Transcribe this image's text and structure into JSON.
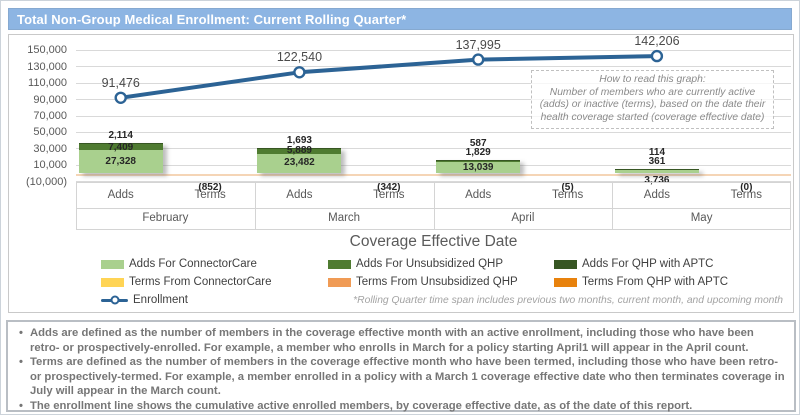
{
  "title": "Total Non-Group Medical Enrollment: Current Rolling Quarter*",
  "chart_data": {
    "type": "combo-stacked-bar-and-line",
    "title": "Total Non-Group Medical Enrollment: Current Rolling Quarter*",
    "xlabel": "Coverage Effective Date",
    "months": [
      "February",
      "March",
      "April",
      "May"
    ],
    "sub_categories": [
      "Adds",
      "Terms"
    ],
    "y_axis": {
      "tick_labels": [
        "150,000",
        "130,000",
        "110,000",
        "90,000",
        "70,000",
        "50,000",
        "30,000",
        "10,000",
        "(10,000)"
      ],
      "tick_values": [
        150000,
        130000,
        110000,
        90000,
        70000,
        50000,
        30000,
        10000,
        -10000
      ],
      "min": -10000,
      "max": 150000,
      "gridlines": true
    },
    "adds_stack": [
      {
        "name": "Adds For ConnectorCare",
        "color": "#a9d08e",
        "values": [
          27328,
          23482,
          13039,
          3736
        ],
        "labels": [
          "27,328",
          "23,482",
          "13,039",
          "3,736"
        ]
      },
      {
        "name": "Adds For Unsubsidized QHP",
        "color": "#4f7b31",
        "values": [
          7409,
          5889,
          1829,
          361
        ],
        "labels": [
          "7,409",
          "5,889",
          "1,829",
          "361"
        ]
      },
      {
        "name": "Adds For QHP with APTC",
        "color": "#375623",
        "values": [
          2114,
          1693,
          587,
          114
        ],
        "labels": [
          "2,114",
          "1,693",
          "587",
          "114"
        ]
      }
    ],
    "terms_totals": {
      "values": [
        -852,
        -342,
        -5,
        0
      ],
      "labels": [
        "(852)",
        "(342)",
        "(5)",
        "(0)"
      ]
    },
    "enrollment_line": {
      "name": "Enrollment",
      "color": "#2c6395",
      "values": [
        91476,
        122540,
        137995,
        142206
      ],
      "labels": [
        "91,476",
        "122,540",
        "137,995",
        "142,206"
      ]
    },
    "legend": [
      {
        "label": "Adds For ConnectorCare",
        "color": "#a9d08e",
        "marker": "swatch"
      },
      {
        "label": "Adds For Unsubsidized QHP",
        "color": "#4f7b31",
        "marker": "swatch"
      },
      {
        "label": "Adds For QHP with APTC",
        "color": "#375623",
        "marker": "swatch"
      },
      {
        "label": "Terms From ConnectorCare",
        "color": "#ffd455",
        "marker": "swatch"
      },
      {
        "label": "Terms From Unsubsidized QHP",
        "color": "#f09b55",
        "marker": "swatch"
      },
      {
        "label": "Terms From QHP with APTC",
        "color": "#e8820d",
        "marker": "swatch"
      },
      {
        "label": "Enrollment",
        "color": "#2c6395",
        "marker": "line"
      }
    ],
    "annotation": {
      "title": "How to read this graph:",
      "body": "Number of members who are currently active (adds) or inactive (terms), based on the date their health coverage started (coverage effective date)"
    },
    "footnote": "*Rolling Quarter time span includes previous two months, current month, and upcoming month"
  },
  "notes": {
    "bullets": [
      "Adds are defined as the number of members in the coverage effective month with an active enrollment, including those who have been retro- or prospectively-enrolled.  For example, a member who enrolls in March for a policy starting April1 will appear in the April count.",
      "Terms are defined as the number of members in the coverage effective month who have been termed, including those who have been retro- or prospectively-termed.  For example, a member enrolled in a policy with a March 1 coverage effective date who then terminates coverage in July will appear in the March count.",
      "The enrollment line shows the cumulative active enrolled members, by coverage effective date, as of the date of this report."
    ]
  }
}
